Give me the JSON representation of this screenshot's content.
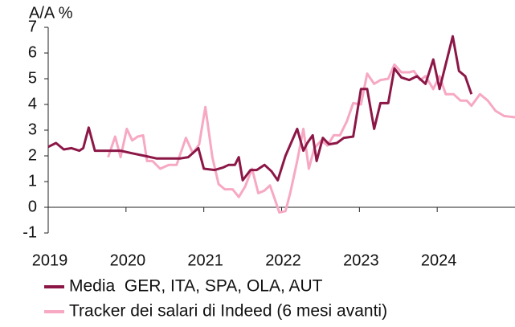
{
  "chart_data": {
    "type": "line",
    "y_label": "A/A %",
    "xlim": [
      2019,
      2025
    ],
    "xticks": [
      2019,
      2020,
      2021,
      2022,
      2023,
      2024
    ],
    "ylim": [
      -1,
      7
    ],
    "yticks": [
      -1,
      0,
      1,
      2,
      3,
      4,
      5,
      6,
      7
    ],
    "series": [
      {
        "name": "Media  GER, ITA, SPA, OLA, AUT",
        "color": "#8c1747",
        "x": [
          2019.0,
          2019.1,
          2019.2,
          2019.3,
          2019.4,
          2019.45,
          2019.52,
          2019.6,
          2019.77,
          2019.93,
          2020.08,
          2020.24,
          2020.39,
          2020.55,
          2020.7,
          2020.8,
          2020.93,
          2021.0,
          2021.14,
          2021.25,
          2021.32,
          2021.4,
          2021.45,
          2021.5,
          2021.6,
          2021.68,
          2021.78,
          2021.87,
          2021.95,
          2022.05,
          2022.2,
          2022.28,
          2022.33,
          2022.4,
          2022.45,
          2022.53,
          2022.61,
          2022.71,
          2022.8,
          2022.92,
          2023.02,
          2023.1,
          2023.19,
          2023.27,
          2023.37,
          2023.45,
          2023.54,
          2023.64,
          2023.74,
          2023.85,
          2023.95,
          2024.03,
          2024.2,
          2024.28,
          2024.36,
          2024.44
        ],
        "values": [
          2.35,
          2.5,
          2.25,
          2.3,
          2.2,
          2.3,
          3.1,
          2.2,
          2.2,
          2.2,
          2.1,
          2.0,
          1.9,
          1.9,
          1.9,
          1.95,
          2.3,
          1.5,
          1.45,
          1.55,
          1.65,
          1.65,
          1.95,
          1.05,
          1.45,
          1.45,
          1.65,
          1.4,
          1.05,
          2.0,
          3.05,
          2.2,
          2.5,
          2.8,
          1.8,
          2.7,
          2.45,
          2.5,
          2.7,
          2.75,
          4.6,
          4.6,
          3.05,
          4.05,
          4.05,
          5.4,
          5.05,
          4.95,
          5.1,
          4.8,
          5.75,
          4.6,
          6.65,
          5.3,
          5.1,
          4.4
        ]
      },
      {
        "name": "Tracker dei salari di Indeed (6 mesi avanti)",
        "color": "#f7a8c3",
        "x": [
          2019.77,
          2019.86,
          2019.93,
          2020.01,
          2020.08,
          2020.15,
          2020.22,
          2020.27,
          2020.34,
          2020.44,
          2020.55,
          2020.65,
          2020.77,
          2020.86,
          2020.94,
          2021.02,
          2021.11,
          2021.19,
          2021.27,
          2021.37,
          2021.45,
          2021.53,
          2021.62,
          2021.7,
          2021.78,
          2021.85,
          2021.92,
          2021.97,
          2022.05,
          2022.11,
          2022.2,
          2022.28,
          2022.35,
          2022.42,
          2022.51,
          2022.59,
          2022.67,
          2022.75,
          2022.84,
          2022.92,
          2023.02,
          2023.1,
          2023.19,
          2023.27,
          2023.37,
          2023.45,
          2023.54,
          2023.64,
          2023.7,
          2023.78,
          2023.85,
          2023.95,
          2024.03,
          2024.11,
          2024.21,
          2024.3,
          2024.38,
          2024.44,
          2024.55,
          2024.65,
          2024.75,
          2024.86,
          2025.0
        ],
        "values": [
          1.95,
          2.75,
          1.95,
          3.05,
          2.6,
          2.75,
          2.8,
          1.8,
          1.8,
          1.5,
          1.65,
          1.65,
          2.7,
          2.1,
          2.45,
          3.9,
          1.95,
          0.9,
          0.7,
          0.7,
          0.4,
          0.8,
          1.5,
          0.55,
          0.65,
          0.85,
          0.25,
          -0.2,
          -0.15,
          0.55,
          1.8,
          3.05,
          1.5,
          2.3,
          2.6,
          2.4,
          2.8,
          2.8,
          3.35,
          4.05,
          4.0,
          5.2,
          4.8,
          4.95,
          5.0,
          5.55,
          5.25,
          5.25,
          5.3,
          4.95,
          5.1,
          4.6,
          5.1,
          4.4,
          4.4,
          4.15,
          4.15,
          3.95,
          4.4,
          4.15,
          3.75,
          3.55,
          3.5
        ]
      }
    ]
  }
}
